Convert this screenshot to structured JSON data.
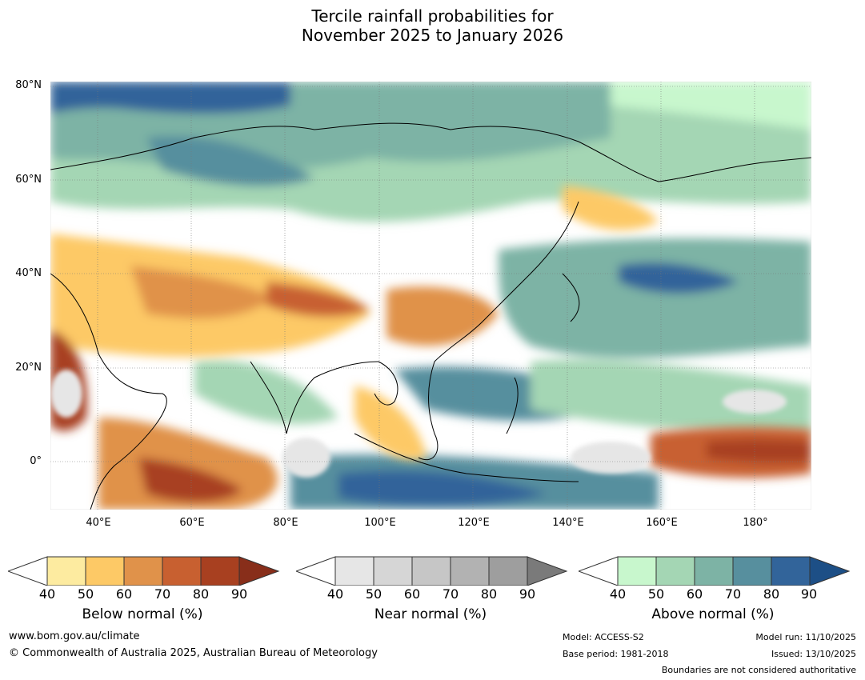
{
  "title_line1": "Tercile rainfall probabilities for",
  "title_line2": "November 2025 to January 2026",
  "lat_labels": [
    "80°N",
    "60°N",
    "40°N",
    "20°N",
    "0°"
  ],
  "lon_labels": [
    "40°E",
    "60°E",
    "80°E",
    "100°E",
    "120°E",
    "140°E",
    "160°E",
    "180°"
  ],
  "colorbars": [
    {
      "name": "below",
      "title": "Below normal (%)",
      "ticks": [
        "40",
        "50",
        "60",
        "70",
        "80",
        "90"
      ],
      "low_color": "#ffffff",
      "colors": [
        "#fdeba0",
        "#fdc966",
        "#e0924a",
        "#c86030",
        "#a84020"
      ],
      "high_color": "#882e1a"
    },
    {
      "name": "near",
      "title": "Near normal (%)",
      "ticks": [
        "40",
        "50",
        "60",
        "70",
        "80",
        "90"
      ],
      "low_color": "#ffffff",
      "colors": [
        "#e6e6e6",
        "#d6d6d6",
        "#c6c6c6",
        "#b2b2b2",
        "#9e9e9e"
      ],
      "high_color": "#7a7a7a"
    },
    {
      "name": "above",
      "title": "Above normal (%)",
      "ticks": [
        "40",
        "50",
        "60",
        "70",
        "80",
        "90"
      ],
      "low_color": "#ffffff",
      "colors": [
        "#c8f7cd",
        "#a4d6b4",
        "#7db3a5",
        "#578f9e",
        "#32649a"
      ],
      "high_color": "#1d4f86"
    }
  ],
  "footer": {
    "website": "www.bom.gov.au/climate",
    "copyright": "© Commonwealth of Australia 2025, Australian Bureau of Meteorology",
    "model": "Model: ACCESS-S2",
    "base_period": "Base period: 1981-2018",
    "model_run": "Model run: 11/10/2025",
    "issued": "Issued: 13/10/2025",
    "boundaries": "Boundaries are not considered authoritative"
  }
}
